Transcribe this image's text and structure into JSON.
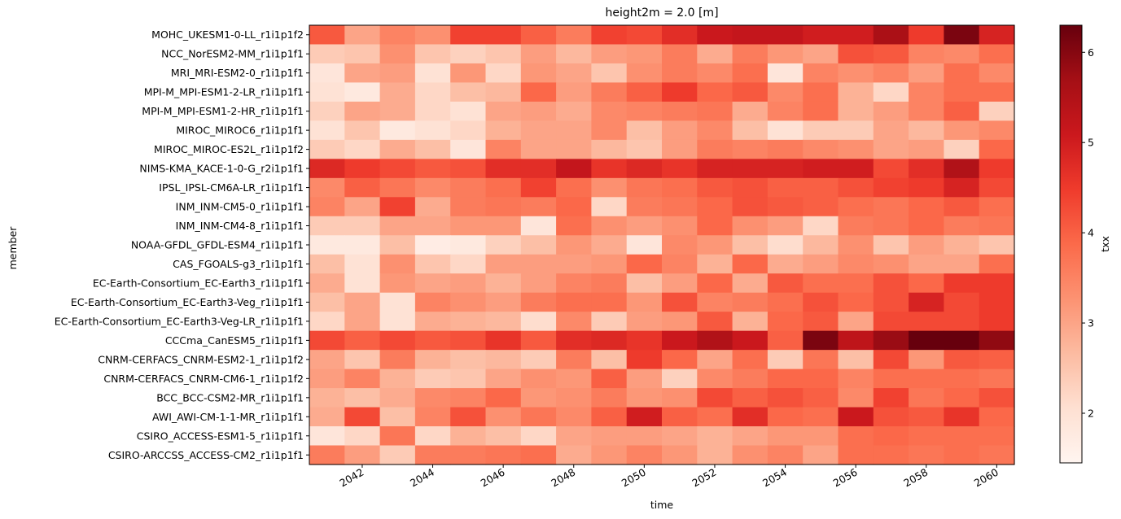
{
  "chart_data": {
    "type": "heatmap",
    "title": "height2m = 2.0 [m]",
    "xlabel": "time",
    "ylabel": "member",
    "colorbar_label": "txx",
    "colormap": "Reds",
    "vmin": 1.45,
    "vmax": 6.3,
    "colorbar_ticks": [
      2,
      3,
      4,
      5,
      6
    ],
    "x_ticks": [
      "2042",
      "2044",
      "2046",
      "2048",
      "2050",
      "2052",
      "2054",
      "2056",
      "2058",
      "2060"
    ],
    "years": [
      2041,
      2042,
      2043,
      2044,
      2045,
      2046,
      2047,
      2048,
      2049,
      2050,
      2051,
      2052,
      2053,
      2054,
      2055,
      2056,
      2057,
      2058,
      2059,
      2060
    ],
    "members": [
      "MOHC_UKESM1-0-LL_r1i1p1f2",
      "NCC_NorESM2-MM_r1i1p1f1",
      "MRI_MRI-ESM2-0_r1i1p1f1",
      "MPI-M_MPI-ESM1-2-LR_r1i1p1f1",
      "MPI-M_MPI-ESM1-2-HR_r1i1p1f1",
      "MIROC_MIROC6_r1i1p1f1",
      "MIROC_MIROC-ES2L_r1i1p1f2",
      "NIMS-KMA_KACE-1-0-G_r2i1p1f1",
      "IPSL_IPSL-CM6A-LR_r1i1p1f1",
      "INM_INM-CM5-0_r1i1p1f1",
      "INM_INM-CM4-8_r1i1p1f1",
      "NOAA-GFDL_GFDL-ESM4_r1i1p1f1",
      "CAS_FGOALS-g3_r1i1p1f1",
      "EC-Earth-Consortium_EC-Earth3_r1i1p1f1",
      "EC-Earth-Consortium_EC-Earth3-Veg_r1i1p1f1",
      "EC-Earth-Consortium_EC-Earth3-Veg-LR_r1i1p1f1",
      "CCCma_CanESM5_r1i1p1f1",
      "CNRM-CERFACS_CNRM-ESM2-1_r1i1p1f2",
      "CNRM-CERFACS_CNRM-CM6-1_r1i1p1f2",
      "BCC_BCC-CSM2-MR_r1i1p1f1",
      "AWI_AWI-CM-1-1-MR_r1i1p1f1",
      "CSIRO_ACCESS-ESM1-5_r1i1p1f1",
      "CSIRO-ARCCSS_ACCESS-CM2_r1i1p1f1"
    ],
    "values": [
      [
        4.1,
        3.0,
        3.5,
        3.3,
        4.4,
        4.4,
        4.0,
        3.6,
        4.4,
        4.3,
        4.7,
        5.1,
        5.2,
        5.2,
        5.0,
        5.0,
        5.6,
        4.5,
        6.1,
        4.9
      ],
      [
        2.4,
        2.5,
        3.3,
        2.5,
        2.3,
        2.5,
        3.1,
        2.7,
        3.1,
        3.2,
        3.6,
        2.9,
        3.6,
        3.2,
        3.0,
        4.2,
        4.1,
        3.5,
        3.4,
        3.8
      ],
      [
        1.9,
        3.0,
        3.1,
        2.0,
        3.2,
        2.2,
        3.2,
        3.0,
        2.5,
        3.3,
        3.6,
        3.4,
        3.8,
        1.9,
        3.5,
        3.3,
        3.5,
        3.1,
        3.8,
        3.4
      ],
      [
        2.0,
        1.8,
        2.9,
        2.2,
        2.6,
        2.7,
        3.9,
        3.1,
        3.6,
        4.0,
        4.5,
        3.9,
        4.1,
        3.4,
        3.8,
        2.8,
        2.2,
        3.5,
        3.8,
        3.8
      ],
      [
        2.3,
        3.0,
        2.9,
        2.2,
        2.0,
        3.0,
        3.1,
        2.9,
        3.4,
        3.5,
        3.6,
        3.7,
        2.9,
        3.5,
        3.8,
        2.8,
        3.1,
        3.5,
        4.0,
        2.3
      ],
      [
        2.0,
        2.5,
        1.8,
        2.0,
        2.2,
        2.8,
        3.0,
        3.0,
        3.4,
        2.6,
        3.1,
        3.4,
        2.6,
        2.0,
        2.4,
        2.4,
        3.0,
        2.7,
        3.2,
        3.4
      ],
      [
        2.4,
        2.2,
        2.9,
        2.6,
        1.9,
        3.5,
        3.0,
        3.0,
        2.7,
        2.5,
        3.1,
        3.6,
        3.5,
        3.6,
        3.4,
        3.3,
        3.0,
        3.1,
        2.3,
        3.9
      ],
      [
        4.8,
        4.5,
        4.3,
        4.1,
        4.2,
        4.7,
        4.7,
        5.2,
        4.6,
        4.8,
        4.6,
        4.9,
        4.9,
        4.9,
        5.0,
        5.0,
        4.3,
        4.7,
        5.5,
        4.5
      ],
      [
        3.4,
        4.0,
        3.7,
        3.4,
        3.6,
        3.8,
        4.4,
        3.8,
        3.3,
        3.7,
        3.8,
        4.1,
        4.2,
        4.0,
        4.0,
        4.2,
        4.4,
        4.5,
        4.9,
        4.3
      ],
      [
        3.5,
        3.0,
        4.4,
        2.9,
        3.6,
        3.7,
        3.6,
        3.9,
        2.2,
        3.6,
        3.7,
        3.9,
        4.2,
        4.1,
        4.0,
        3.8,
        3.7,
        3.9,
        4.1,
        3.8
      ],
      [
        2.4,
        2.4,
        3.0,
        3.0,
        3.2,
        3.2,
        1.9,
        3.8,
        3.3,
        3.1,
        3.3,
        3.9,
        3.3,
        3.1,
        2.2,
        3.6,
        3.7,
        3.9,
        3.6,
        3.7
      ],
      [
        1.8,
        1.8,
        2.6,
        1.7,
        1.8,
        2.3,
        2.6,
        3.2,
        2.9,
        1.9,
        3.4,
        3.2,
        2.6,
        2.1,
        2.7,
        3.3,
        2.5,
        3.1,
        2.8,
        2.5
      ],
      [
        2.6,
        2.0,
        3.3,
        2.5,
        2.2,
        3.1,
        3.1,
        3.1,
        3.2,
        3.9,
        3.5,
        2.8,
        3.9,
        2.9,
        3.1,
        3.4,
        3.3,
        3.0,
        3.0,
        3.8
      ],
      [
        2.9,
        2.0,
        3.2,
        3.0,
        3.1,
        2.8,
        3.1,
        3.5,
        3.6,
        2.6,
        3.1,
        3.9,
        2.9,
        4.1,
        3.8,
        3.8,
        4.2,
        3.9,
        4.5,
        4.5
      ],
      [
        2.6,
        3.0,
        2.0,
        3.5,
        3.3,
        3.1,
        3.6,
        3.8,
        3.8,
        3.2,
        4.2,
        3.5,
        3.6,
        3.8,
        4.2,
        3.9,
        4.2,
        4.9,
        4.3,
        4.5
      ],
      [
        2.2,
        3.0,
        2.0,
        2.9,
        2.8,
        2.7,
        2.1,
        3.4,
        2.4,
        3.1,
        3.2,
        4.1,
        2.8,
        3.9,
        4.1,
        3.0,
        4.3,
        4.3,
        4.3,
        4.5
      ],
      [
        4.3,
        4.0,
        4.3,
        4.1,
        4.2,
        4.6,
        4.1,
        4.7,
        4.8,
        4.6,
        5.1,
        5.5,
        5.1,
        4.0,
        6.1,
        5.3,
        5.8,
        6.3,
        6.3,
        5.9
      ],
      [
        3.0,
        2.5,
        3.6,
        2.8,
        2.6,
        2.7,
        2.4,
        3.6,
        2.6,
        4.5,
        3.9,
        3.0,
        3.8,
        2.4,
        3.7,
        2.6,
        4.3,
        3.2,
        4.1,
        4.0
      ],
      [
        3.1,
        3.5,
        2.8,
        2.4,
        2.5,
        3.0,
        3.3,
        3.2,
        4.0,
        3.1,
        2.3,
        3.4,
        3.6,
        3.9,
        3.9,
        3.5,
        3.8,
        3.8,
        3.8,
        3.7
      ],
      [
        2.8,
        2.6,
        2.9,
        3.4,
        3.5,
        3.9,
        3.2,
        3.3,
        3.6,
        3.2,
        3.3,
        4.3,
        4.0,
        4.2,
        4.0,
        3.4,
        4.4,
        3.7,
        3.9,
        4.2
      ],
      [
        2.9,
        4.3,
        2.6,
        3.5,
        4.2,
        3.3,
        3.7,
        3.4,
        4.0,
        5.0,
        4.0,
        3.8,
        4.7,
        3.9,
        3.8,
        5.1,
        4.2,
        4.1,
        4.6,
        3.9
      ],
      [
        1.9,
        2.2,
        3.7,
        2.2,
        2.8,
        2.6,
        2.2,
        3.0,
        3.1,
        3.1,
        3.0,
        2.8,
        3.0,
        3.2,
        3.2,
        3.8,
        3.9,
        3.8,
        3.8,
        3.8
      ],
      [
        3.6,
        3.1,
        2.4,
        3.6,
        3.6,
        3.7,
        3.8,
        2.9,
        3.2,
        3.5,
        3.2,
        2.8,
        3.3,
        3.5,
        3.0,
        3.8,
        3.8,
        3.7,
        3.8,
        3.7
      ]
    ]
  }
}
